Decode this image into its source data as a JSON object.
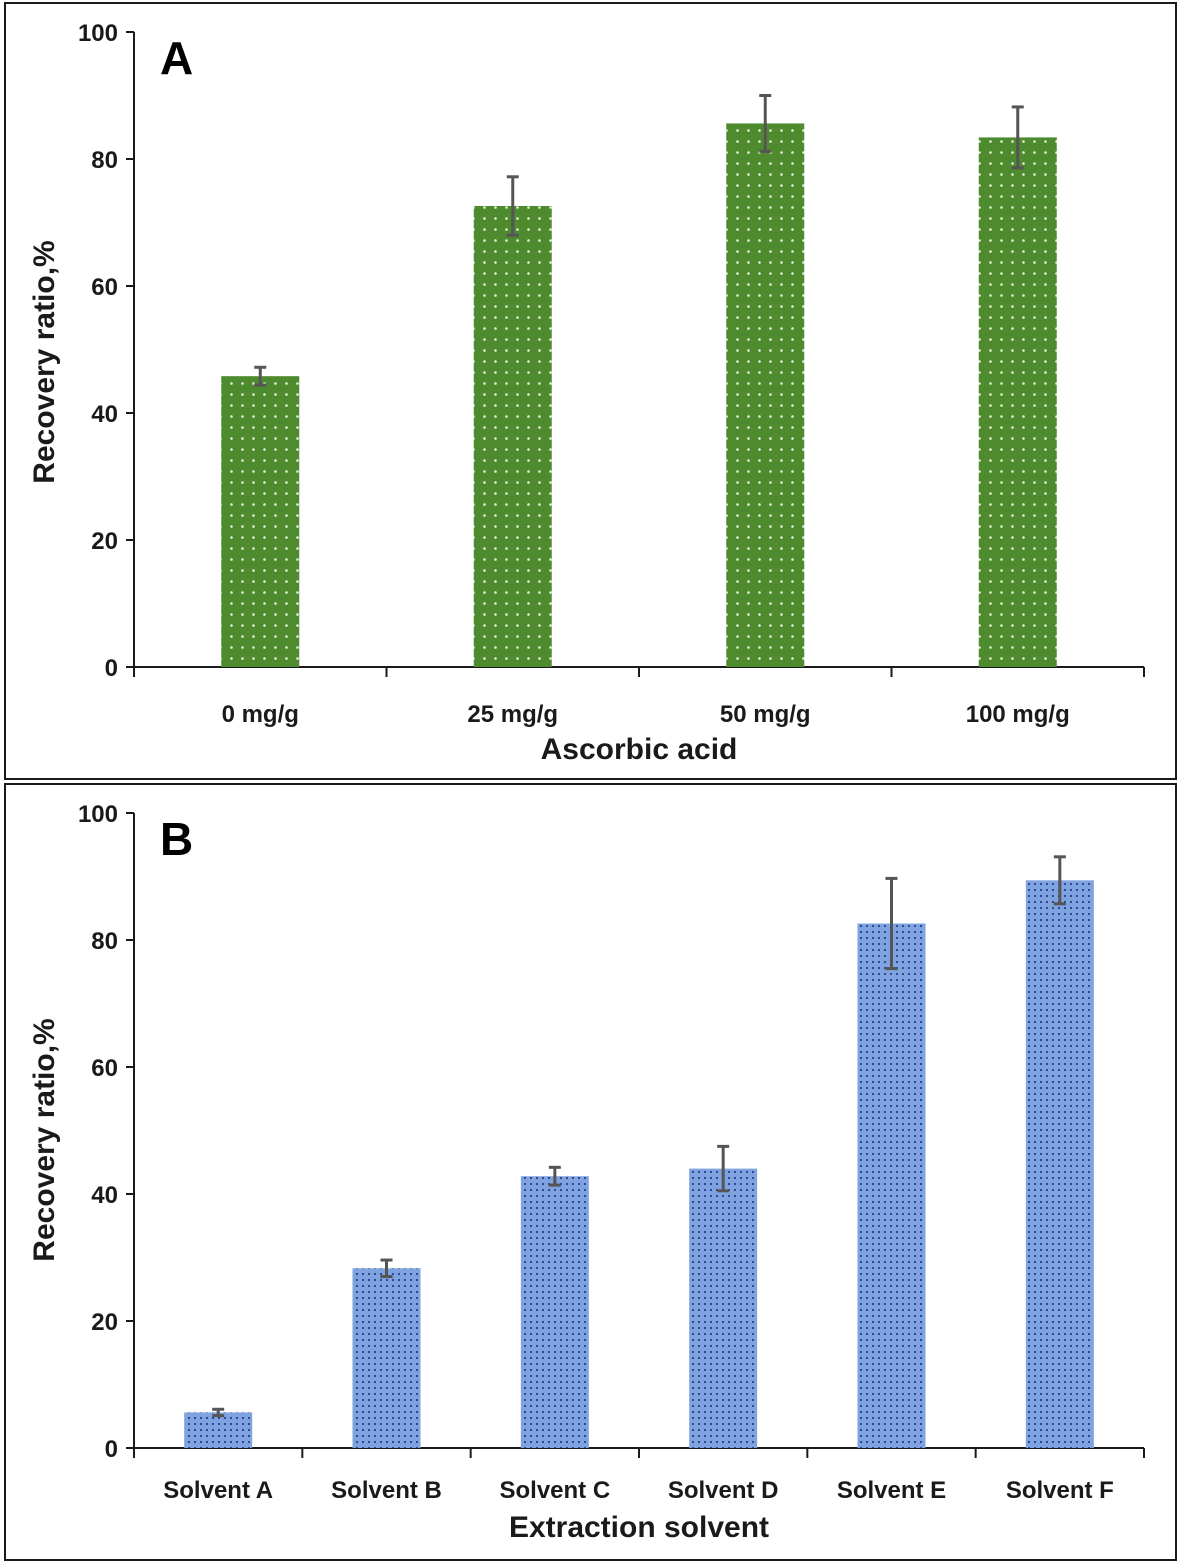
{
  "chart_data": [
    {
      "type": "bar",
      "panel_label": "A",
      "categories": [
        "0 mg/g",
        "25 mg/g",
        "50 mg/g",
        "100 mg/g"
      ],
      "values": [
        45.8,
        72.6,
        85.6,
        83.4
      ],
      "errors": [
        1.4,
        4.6,
        4.4,
        4.8
      ],
      "title": "",
      "xlabel": "Ascorbic acid",
      "ylabel": "Recovery ratio,%",
      "ylim": [
        0,
        100
      ],
      "yticks": [
        "0",
        "20",
        "40",
        "60",
        "80",
        "100"
      ],
      "bar_color": "#4e8a2e",
      "pattern": "sparse-dots",
      "error_color": "#555555",
      "grid": false
    },
    {
      "type": "bar",
      "panel_label": "B",
      "categories": [
        "Solvent A",
        "Solvent B",
        "Solvent C",
        "Solvent D",
        "Solvent E",
        "Solvent F"
      ],
      "values": [
        5.6,
        28.3,
        42.8,
        44.0,
        82.6,
        89.4
      ],
      "errors": [
        0.5,
        1.3,
        1.4,
        3.5,
        7.1,
        3.7
      ],
      "title": "",
      "xlabel": "Extraction solvent",
      "ylabel": "Recovery ratio,%",
      "ylim": [
        0,
        100
      ],
      "yticks": [
        "0",
        "20",
        "40",
        "60",
        "80",
        "100"
      ],
      "bar_color": "#7fa3e0",
      "pattern": "dense-dots",
      "error_color": "#555555",
      "grid": false
    }
  ]
}
